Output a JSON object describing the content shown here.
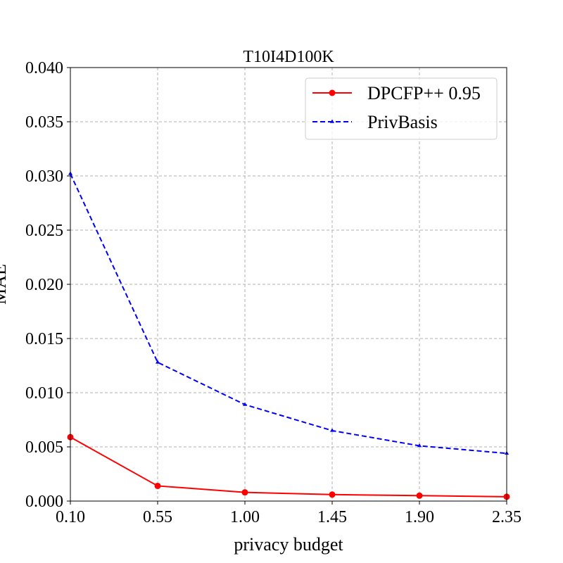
{
  "chart_data": {
    "type": "line",
    "title": "T10I4D100K",
    "xlabel": "privacy budget",
    "ylabel": "MAE",
    "x": [
      0.1,
      0.55,
      1.0,
      1.45,
      1.9,
      2.35
    ],
    "x_tick_labels": [
      "0.10",
      "0.55",
      "1.00",
      "1.45",
      "1.90",
      "2.35"
    ],
    "xlim": [
      0.1,
      2.35
    ],
    "ylim": [
      0.0,
      0.04
    ],
    "y_ticks": [
      0.0,
      0.005,
      0.01,
      0.015,
      0.02,
      0.025,
      0.03,
      0.035,
      0.04
    ],
    "y_tick_labels": [
      "0.000",
      "0.005",
      "0.010",
      "0.015",
      "0.020",
      "0.025",
      "0.030",
      "0.035",
      "0.040"
    ],
    "grid": true,
    "legend_position": "top-right",
    "series": [
      {
        "name": "DPCFP++ 0.95",
        "values": [
          0.0059,
          0.0014,
          0.0008,
          0.0006,
          0.0005,
          0.0004
        ],
        "color": "#ff0000",
        "line_style": "solid",
        "marker": "circle"
      },
      {
        "name": "PrivBasis",
        "values": [
          0.0302,
          0.0128,
          0.0089,
          0.0065,
          0.0051,
          0.0044
        ],
        "color": "#0000ff",
        "line_style": "dashed",
        "marker": "triangle"
      }
    ]
  }
}
